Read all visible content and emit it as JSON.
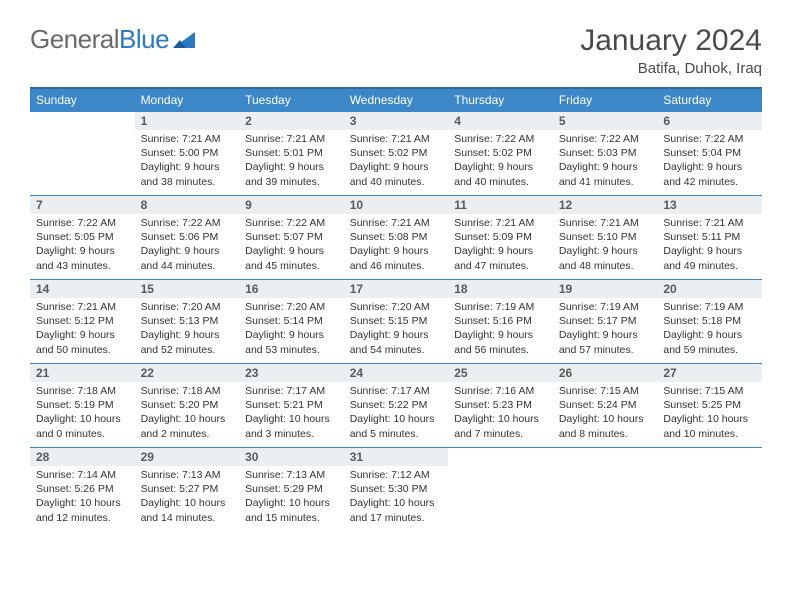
{
  "logo": {
    "text1": "General",
    "text2": "Blue"
  },
  "title": "January 2024",
  "location": "Batifa, Duhok, Iraq",
  "colors": {
    "header_bg": "#3b87c8",
    "header_border": "#2a6ba5",
    "cell_border": "#3b87c8",
    "daynum_bg": "#eceff1",
    "text": "#333333",
    "logo_gray": "#6a6a6a",
    "logo_blue": "#2a7ac0"
  },
  "weekdays": [
    "Sunday",
    "Monday",
    "Tuesday",
    "Wednesday",
    "Thursday",
    "Friday",
    "Saturday"
  ],
  "weeks": [
    [
      null,
      {
        "n": "1",
        "sr": "7:21 AM",
        "ss": "5:00 PM",
        "dl": "9 hours and 38 minutes."
      },
      {
        "n": "2",
        "sr": "7:21 AM",
        "ss": "5:01 PM",
        "dl": "9 hours and 39 minutes."
      },
      {
        "n": "3",
        "sr": "7:21 AM",
        "ss": "5:02 PM",
        "dl": "9 hours and 40 minutes."
      },
      {
        "n": "4",
        "sr": "7:22 AM",
        "ss": "5:02 PM",
        "dl": "9 hours and 40 minutes."
      },
      {
        "n": "5",
        "sr": "7:22 AM",
        "ss": "5:03 PM",
        "dl": "9 hours and 41 minutes."
      },
      {
        "n": "6",
        "sr": "7:22 AM",
        "ss": "5:04 PM",
        "dl": "9 hours and 42 minutes."
      }
    ],
    [
      {
        "n": "7",
        "sr": "7:22 AM",
        "ss": "5:05 PM",
        "dl": "9 hours and 43 minutes."
      },
      {
        "n": "8",
        "sr": "7:22 AM",
        "ss": "5:06 PM",
        "dl": "9 hours and 44 minutes."
      },
      {
        "n": "9",
        "sr": "7:22 AM",
        "ss": "5:07 PM",
        "dl": "9 hours and 45 minutes."
      },
      {
        "n": "10",
        "sr": "7:21 AM",
        "ss": "5:08 PM",
        "dl": "9 hours and 46 minutes."
      },
      {
        "n": "11",
        "sr": "7:21 AM",
        "ss": "5:09 PM",
        "dl": "9 hours and 47 minutes."
      },
      {
        "n": "12",
        "sr": "7:21 AM",
        "ss": "5:10 PM",
        "dl": "9 hours and 48 minutes."
      },
      {
        "n": "13",
        "sr": "7:21 AM",
        "ss": "5:11 PM",
        "dl": "9 hours and 49 minutes."
      }
    ],
    [
      {
        "n": "14",
        "sr": "7:21 AM",
        "ss": "5:12 PM",
        "dl": "9 hours and 50 minutes."
      },
      {
        "n": "15",
        "sr": "7:20 AM",
        "ss": "5:13 PM",
        "dl": "9 hours and 52 minutes."
      },
      {
        "n": "16",
        "sr": "7:20 AM",
        "ss": "5:14 PM",
        "dl": "9 hours and 53 minutes."
      },
      {
        "n": "17",
        "sr": "7:20 AM",
        "ss": "5:15 PM",
        "dl": "9 hours and 54 minutes."
      },
      {
        "n": "18",
        "sr": "7:19 AM",
        "ss": "5:16 PM",
        "dl": "9 hours and 56 minutes."
      },
      {
        "n": "19",
        "sr": "7:19 AM",
        "ss": "5:17 PM",
        "dl": "9 hours and 57 minutes."
      },
      {
        "n": "20",
        "sr": "7:19 AM",
        "ss": "5:18 PM",
        "dl": "9 hours and 59 minutes."
      }
    ],
    [
      {
        "n": "21",
        "sr": "7:18 AM",
        "ss": "5:19 PM",
        "dl": "10 hours and 0 minutes."
      },
      {
        "n": "22",
        "sr": "7:18 AM",
        "ss": "5:20 PM",
        "dl": "10 hours and 2 minutes."
      },
      {
        "n": "23",
        "sr": "7:17 AM",
        "ss": "5:21 PM",
        "dl": "10 hours and 3 minutes."
      },
      {
        "n": "24",
        "sr": "7:17 AM",
        "ss": "5:22 PM",
        "dl": "10 hours and 5 minutes."
      },
      {
        "n": "25",
        "sr": "7:16 AM",
        "ss": "5:23 PM",
        "dl": "10 hours and 7 minutes."
      },
      {
        "n": "26",
        "sr": "7:15 AM",
        "ss": "5:24 PM",
        "dl": "10 hours and 8 minutes."
      },
      {
        "n": "27",
        "sr": "7:15 AM",
        "ss": "5:25 PM",
        "dl": "10 hours and 10 minutes."
      }
    ],
    [
      {
        "n": "28",
        "sr": "7:14 AM",
        "ss": "5:26 PM",
        "dl": "10 hours and 12 minutes."
      },
      {
        "n": "29",
        "sr": "7:13 AM",
        "ss": "5:27 PM",
        "dl": "10 hours and 14 minutes."
      },
      {
        "n": "30",
        "sr": "7:13 AM",
        "ss": "5:29 PM",
        "dl": "10 hours and 15 minutes."
      },
      {
        "n": "31",
        "sr": "7:12 AM",
        "ss": "5:30 PM",
        "dl": "10 hours and 17 minutes."
      },
      null,
      null,
      null
    ]
  ],
  "labels": {
    "sunrise": "Sunrise:",
    "sunset": "Sunset:",
    "daylight": "Daylight:"
  }
}
